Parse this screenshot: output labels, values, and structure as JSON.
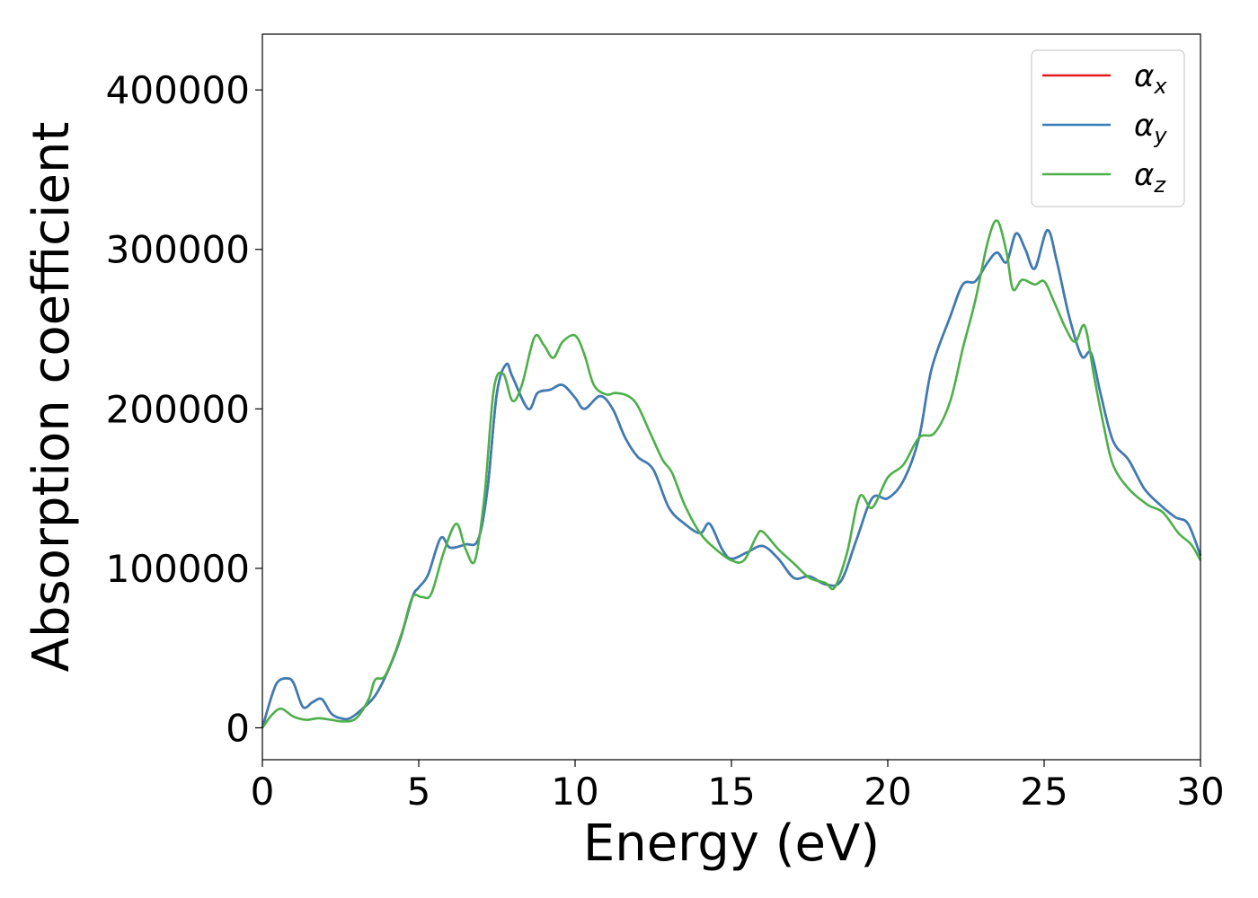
{
  "chart_data": {
    "type": "line",
    "xlabel": "Energy (eV)",
    "ylabel": "Absorption coefficient",
    "xlim": [
      0,
      30
    ],
    "ylim": [
      -20000,
      435000
    ],
    "xticks": [
      0,
      5,
      10,
      15,
      20,
      25,
      30
    ],
    "xtick_labels": [
      "0",
      "5",
      "10",
      "15",
      "20",
      "25",
      "30"
    ],
    "yticks": [
      0,
      100000,
      200000,
      300000,
      400000
    ],
    "ytick_labels": [
      "0",
      "100000",
      "200000",
      "300000",
      "400000"
    ],
    "grid": false,
    "legend_position": "top-right",
    "series": [
      {
        "name": "α_x",
        "symbol": "α",
        "subscript": "x",
        "color": "#e41a1c",
        "x": [
          0,
          0.3,
          0.5,
          0.8,
          1.0,
          1.3,
          1.6,
          1.9,
          2.2,
          2.5,
          2.8,
          3.2,
          3.6,
          4.0,
          4.4,
          4.8,
          5.0,
          5.3,
          5.7,
          6.0,
          6.5,
          6.9,
          7.2,
          7.5,
          7.8,
          8.0,
          8.5,
          8.8,
          9.2,
          9.6,
          10.0,
          10.3,
          10.8,
          11.2,
          11.6,
          12.0,
          12.5,
          13.0,
          13.5,
          14.0,
          14.3,
          14.7,
          15.0,
          15.5,
          16.0,
          16.5,
          17.0,
          17.5,
          18.0,
          18.5,
          19.0,
          19.5,
          20.0,
          20.5,
          21.0,
          21.4,
          22.0,
          22.4,
          22.8,
          23.2,
          23.5,
          23.8,
          24.1,
          24.4,
          24.7,
          25.1,
          25.4,
          25.8,
          26.2,
          26.5,
          26.8,
          27.2,
          27.7,
          28.2,
          28.7,
          29.2,
          29.6,
          30.0
        ],
        "y": [
          0,
          20000,
          29000,
          31000,
          28000,
          13000,
          16000,
          18000,
          9000,
          6000,
          6000,
          12000,
          20000,
          35000,
          55000,
          82000,
          88000,
          96000,
          119000,
          113000,
          115000,
          118000,
          150000,
          210000,
          228000,
          220000,
          200000,
          210000,
          212000,
          215000,
          207000,
          200000,
          208000,
          200000,
          182000,
          170000,
          162000,
          138000,
          128000,
          122000,
          128000,
          112000,
          106000,
          110000,
          114000,
          106000,
          94000,
          95000,
          90000,
          92000,
          118000,
          144000,
          144000,
          155000,
          182000,
          225000,
          258000,
          278000,
          280000,
          292000,
          298000,
          292000,
          310000,
          300000,
          288000,
          312000,
          293000,
          258000,
          233000,
          235000,
          210000,
          180000,
          168000,
          150000,
          140000,
          132000,
          128000,
          108000
        ]
      },
      {
        "name": "α_y",
        "symbol": "α",
        "subscript": "y",
        "color": "#377eb8",
        "x": [
          0,
          0.3,
          0.5,
          0.8,
          1.0,
          1.3,
          1.6,
          1.9,
          2.2,
          2.5,
          2.8,
          3.2,
          3.6,
          4.0,
          4.4,
          4.8,
          5.0,
          5.3,
          5.7,
          6.0,
          6.5,
          6.9,
          7.2,
          7.5,
          7.8,
          8.0,
          8.5,
          8.8,
          9.2,
          9.6,
          10.0,
          10.3,
          10.8,
          11.2,
          11.6,
          12.0,
          12.5,
          13.0,
          13.5,
          14.0,
          14.3,
          14.7,
          15.0,
          15.5,
          16.0,
          16.5,
          17.0,
          17.5,
          18.0,
          18.5,
          19.0,
          19.5,
          20.0,
          20.5,
          21.0,
          21.4,
          22.0,
          22.4,
          22.8,
          23.2,
          23.5,
          23.8,
          24.1,
          24.4,
          24.7,
          25.1,
          25.4,
          25.8,
          26.2,
          26.5,
          26.8,
          27.2,
          27.7,
          28.2,
          28.7,
          29.2,
          29.6,
          30.0
        ],
        "y": [
          0,
          20000,
          29000,
          31000,
          28000,
          13000,
          16000,
          18000,
          9000,
          6000,
          6000,
          12000,
          20000,
          35000,
          55000,
          82000,
          88000,
          96000,
          119000,
          113000,
          115000,
          118000,
          150000,
          210000,
          228000,
          220000,
          200000,
          210000,
          212000,
          215000,
          207000,
          200000,
          208000,
          200000,
          182000,
          170000,
          162000,
          138000,
          128000,
          122000,
          128000,
          112000,
          106000,
          110000,
          114000,
          106000,
          94000,
          95000,
          90000,
          92000,
          118000,
          144000,
          144000,
          155000,
          182000,
          225000,
          258000,
          278000,
          280000,
          292000,
          298000,
          292000,
          310000,
          300000,
          288000,
          312000,
          293000,
          258000,
          233000,
          235000,
          210000,
          180000,
          168000,
          150000,
          140000,
          132000,
          128000,
          108000
        ]
      },
      {
        "name": "α_z",
        "symbol": "α",
        "subscript": "z",
        "color": "#4daf4a",
        "x": [
          0,
          0.3,
          0.6,
          1.0,
          1.4,
          1.8,
          2.2,
          2.6,
          3.0,
          3.4,
          3.6,
          3.9,
          4.2,
          4.5,
          4.8,
          5.1,
          5.4,
          5.8,
          6.2,
          6.5,
          6.8,
          7.1,
          7.4,
          7.7,
          8.0,
          8.3,
          8.7,
          9.0,
          9.3,
          9.6,
          10.0,
          10.3,
          10.6,
          11.0,
          11.3,
          11.7,
          12.0,
          12.4,
          12.8,
          13.1,
          13.5,
          14.0,
          14.5,
          15.0,
          15.4,
          15.8,
          16.0,
          16.5,
          17.0,
          17.5,
          18.0,
          18.3,
          18.7,
          19.1,
          19.5,
          20.0,
          20.5,
          21.0,
          21.5,
          22.0,
          22.4,
          22.8,
          23.2,
          23.5,
          23.8,
          24.0,
          24.3,
          24.7,
          25.0,
          25.3,
          25.7,
          26.0,
          26.3,
          26.6,
          26.9,
          27.2,
          27.7,
          28.3,
          28.8,
          29.3,
          29.7,
          30.0
        ],
        "y": [
          0,
          8000,
          12000,
          7000,
          5000,
          6000,
          5000,
          4000,
          6000,
          18000,
          30000,
          32000,
          45000,
          62000,
          82000,
          82000,
          84000,
          110000,
          128000,
          112000,
          105000,
          145000,
          212000,
          222000,
          205000,
          215000,
          245000,
          240000,
          232000,
          242000,
          246000,
          234000,
          215000,
          209000,
          210000,
          208000,
          202000,
          185000,
          168000,
          160000,
          140000,
          122000,
          112000,
          105000,
          105000,
          120000,
          123000,
          112000,
          103000,
          94000,
          91000,
          88000,
          110000,
          145000,
          138000,
          157000,
          165000,
          182000,
          185000,
          205000,
          238000,
          268000,
          305000,
          318000,
          298000,
          275000,
          281000,
          278000,
          280000,
          268000,
          250000,
          242000,
          252000,
          220000,
          190000,
          165000,
          150000,
          140000,
          135000,
          122000,
          115000,
          105000
        ]
      }
    ]
  }
}
